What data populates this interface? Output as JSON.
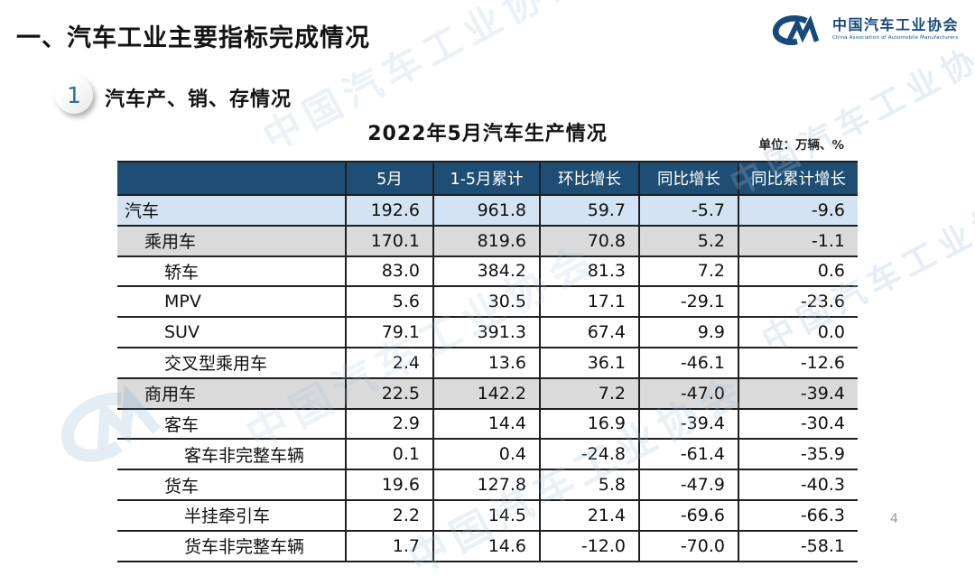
{
  "page": {
    "title": "一、汽车工业主要指标完成情况",
    "section_badge": "1",
    "section_title": "汽车产、销、存情况",
    "page_number": "4"
  },
  "logo": {
    "mark": "CM",
    "name_cn": "中国汽车工业协会",
    "name_en": "China Association of Automobile Manufacturers",
    "color": "#17497B"
  },
  "watermark": {
    "text": "中国汽车工业协会"
  },
  "table": {
    "title": "2022年5月汽车生产情况",
    "unit_label": "单位：万辆、%",
    "columns": [
      "",
      "5月",
      "1-5月累计",
      "环比增长",
      "同比增长",
      "同比累计增长"
    ],
    "colors": {
      "header_bg": "#1F4E74",
      "header_text": "#FFFFFF",
      "row_blue": "#D3E3F3",
      "row_grey": "#DADADA",
      "border": "#1F1F1F"
    },
    "rows": [
      {
        "label": "汽车",
        "indent": 0,
        "bg": "blue",
        "values": [
          "192.6",
          "961.8",
          "59.7",
          "-5.7",
          "-9.6"
        ]
      },
      {
        "label": "乘用车",
        "indent": 1,
        "bg": "grey",
        "values": [
          "170.1",
          "819.6",
          "70.8",
          "5.2",
          "-1.1"
        ]
      },
      {
        "label": "轿车",
        "indent": 2,
        "bg": "white",
        "values": [
          "83.0",
          "384.2",
          "81.3",
          "7.2",
          "0.6"
        ]
      },
      {
        "label": "MPV",
        "indent": 2,
        "bg": "white",
        "values": [
          "5.6",
          "30.5",
          "17.1",
          "-29.1",
          "-23.6"
        ]
      },
      {
        "label": "SUV",
        "indent": 2,
        "bg": "white",
        "values": [
          "79.1",
          "391.3",
          "67.4",
          "9.9",
          "0.0"
        ]
      },
      {
        "label": "交叉型乘用车",
        "indent": 2,
        "bg": "white",
        "values": [
          "2.4",
          "13.6",
          "36.1",
          "-46.1",
          "-12.6"
        ]
      },
      {
        "label": "商用车",
        "indent": 1,
        "bg": "grey",
        "values": [
          "22.5",
          "142.2",
          "7.2",
          "-47.0",
          "-39.4"
        ]
      },
      {
        "label": "客车",
        "indent": 2,
        "bg": "white",
        "values": [
          "2.9",
          "14.4",
          "16.9",
          "-39.4",
          "-30.4"
        ]
      },
      {
        "label": "客车非完整车辆",
        "indent": 3,
        "bg": "white",
        "values": [
          "0.1",
          "0.4",
          "-24.8",
          "-61.4",
          "-35.9"
        ]
      },
      {
        "label": "货车",
        "indent": 2,
        "bg": "white",
        "values": [
          "19.6",
          "127.8",
          "5.8",
          "-47.9",
          "-40.3"
        ]
      },
      {
        "label": "半挂牵引车",
        "indent": 3,
        "bg": "white",
        "values": [
          "2.2",
          "14.5",
          "21.4",
          "-69.6",
          "-66.3"
        ]
      },
      {
        "label": "货车非完整车辆",
        "indent": 3,
        "bg": "white",
        "values": [
          "1.7",
          "14.6",
          "-12.0",
          "-70.0",
          "-58.1"
        ]
      }
    ]
  },
  "chart_data": {
    "type": "table",
    "title": "2022年5月汽车生产情况",
    "unit": "万辆、%",
    "columns": [
      "5月",
      "1-5月累计",
      "环比增长",
      "同比增长",
      "同比累计增长"
    ],
    "rows": [
      [
        "汽车",
        192.6,
        961.8,
        59.7,
        -5.7,
        -9.6
      ],
      [
        "乘用车",
        170.1,
        819.6,
        70.8,
        5.2,
        -1.1
      ],
      [
        "轿车",
        83.0,
        384.2,
        81.3,
        7.2,
        0.6
      ],
      [
        "MPV",
        5.6,
        30.5,
        17.1,
        -29.1,
        -23.6
      ],
      [
        "SUV",
        79.1,
        391.3,
        67.4,
        9.9,
        0.0
      ],
      [
        "交叉型乘用车",
        2.4,
        13.6,
        36.1,
        -46.1,
        -12.6
      ],
      [
        "商用车",
        22.5,
        142.2,
        7.2,
        -47.0,
        -39.4
      ],
      [
        "客车",
        2.9,
        14.4,
        16.9,
        -39.4,
        -30.4
      ],
      [
        "客车非完整车辆",
        0.1,
        0.4,
        -24.8,
        -61.4,
        -35.9
      ],
      [
        "货车",
        19.6,
        127.8,
        5.8,
        -47.9,
        -40.3
      ],
      [
        "半挂牵引车",
        2.2,
        14.5,
        21.4,
        -69.6,
        -66.3
      ],
      [
        "货车非完整车辆",
        1.7,
        14.6,
        -12.0,
        -70.0,
        -58.1
      ]
    ]
  }
}
